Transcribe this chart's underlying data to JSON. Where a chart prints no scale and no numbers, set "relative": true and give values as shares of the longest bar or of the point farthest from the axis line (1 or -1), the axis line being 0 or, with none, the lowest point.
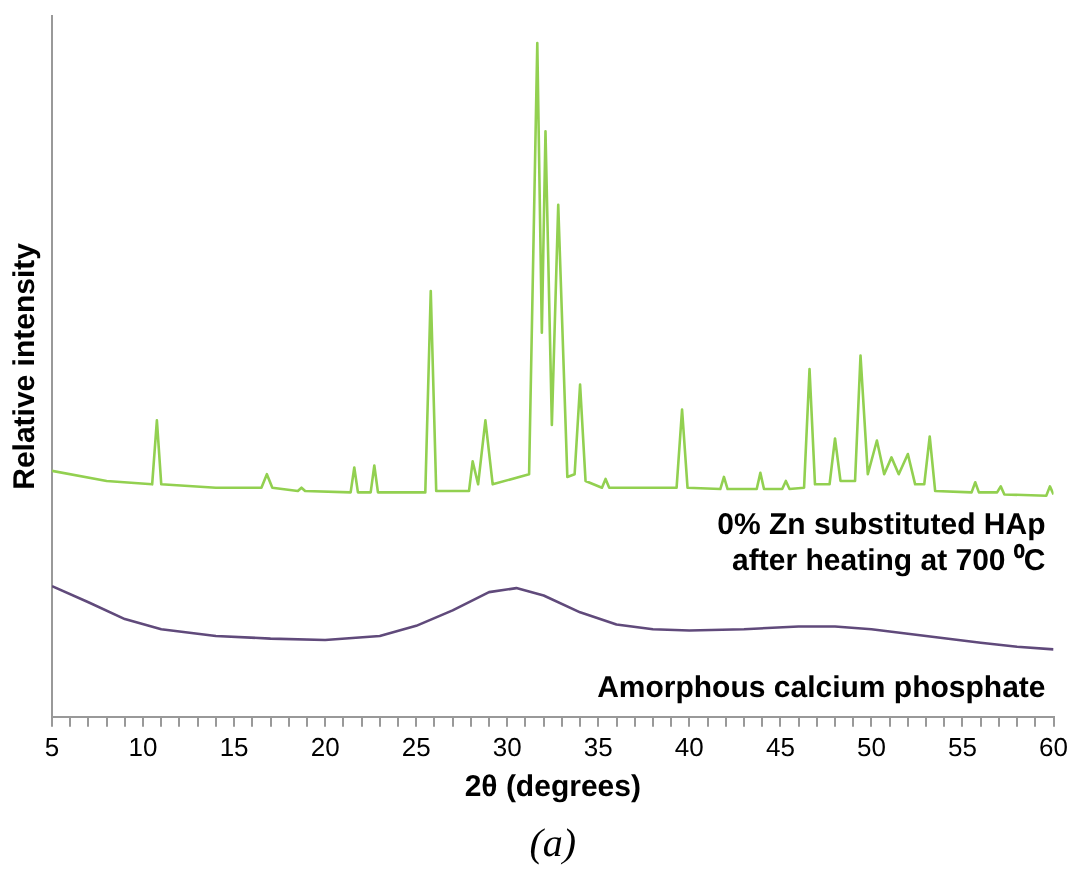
{
  "chart_data": {
    "type": "line",
    "relative": true,
    "xlabel": "2θ (degrees)",
    "ylabel": "Relative intensity",
    "marker": "none",
    "xlim": [
      5,
      60
    ],
    "xticks": [
      5,
      {
        "value": 6,
        "label": null
      },
      {
        "value": 7,
        "label": null
      },
      {
        "value": 8,
        "label": null
      },
      {
        "value": 9,
        "label": null
      },
      10,
      {
        "value": 11,
        "label": null
      },
      {
        "value": 12,
        "label": null
      },
      {
        "value": 13,
        "label": null
      },
      {
        "value": 14,
        "label": null
      },
      15,
      {
        "value": 16,
        "label": null
      },
      {
        "value": 17,
        "label": null
      },
      {
        "value": 18,
        "label": null
      },
      {
        "value": 19,
        "label": null
      },
      20,
      {
        "value": 21,
        "label": null
      },
      {
        "value": 22,
        "label": null
      },
      {
        "value": 23,
        "label": null
      },
      {
        "value": 24,
        "label": null
      },
      25,
      {
        "value": 26,
        "label": null
      },
      {
        "value": 27,
        "label": null
      },
      {
        "value": 28,
        "label": null
      },
      {
        "value": 29,
        "label": null
      },
      30,
      {
        "value": 31,
        "label": null
      },
      {
        "value": 32,
        "label": null
      },
      {
        "value": 33,
        "label": null
      },
      {
        "value": 34,
        "label": null
      },
      35,
      {
        "value": 36,
        "label": null
      },
      {
        "value": 37,
        "label": null
      },
      {
        "value": 38,
        "label": null
      },
      {
        "value": 39,
        "label": null
      },
      40,
      {
        "value": 41,
        "label": null
      },
      {
        "value": 42,
        "label": null
      },
      {
        "value": 43,
        "label": null
      },
      {
        "value": 44,
        "label": null
      },
      45,
      {
        "value": 46,
        "label": null
      },
      {
        "value": 47,
        "label": null
      },
      {
        "value": 48,
        "label": null
      },
      {
        "value": 49,
        "label": null
      },
      50,
      {
        "value": 51,
        "label": null
      },
      {
        "value": 52,
        "label": null
      },
      {
        "value": 53,
        "label": null
      },
      {
        "value": 54,
        "label": null
      },
      55,
      {
        "value": 56,
        "label": null
      },
      {
        "value": 57,
        "label": null
      },
      {
        "value": 58,
        "label": null
      },
      {
        "value": 59,
        "label": null
      },
      60
    ],
    "series": [
      {
        "name": "0% Zn substituted HAp after heating at 700 ⁰C",
        "color": "#92d050",
        "x": [
          5,
          8,
          10.5,
          10.76,
          11,
          14,
          16.5,
          16.8,
          17.1,
          18.5,
          18.7,
          18.9,
          21.4,
          21.6,
          21.8,
          22.5,
          22.7,
          22.9,
          25.5,
          25.8,
          26.1,
          27.9,
          28.1,
          28.4,
          28.8,
          29.2,
          31.2,
          31.65,
          31.9,
          32.1,
          32.45,
          32.8,
          33.3,
          33.7,
          34.0,
          34.3,
          35.2,
          35.4,
          35.6,
          39.3,
          39.6,
          39.9,
          41.7,
          41.9,
          42.1,
          43.7,
          43.9,
          44.1,
          45.1,
          45.3,
          45.5,
          46.3,
          46.6,
          46.9,
          47.7,
          48.0,
          48.3,
          49.1,
          49.4,
          49.8,
          50.3,
          50.7,
          51.1,
          51.5,
          52.0,
          52.4,
          52.9,
          53.2,
          53.5,
          55.5,
          55.7,
          55.9,
          56.9,
          57.1,
          57.3,
          59.6,
          59.8,
          60
        ],
        "values": [
          0.365,
          0.35,
          0.345,
          0.44,
          0.345,
          0.34,
          0.34,
          0.36,
          0.34,
          0.335,
          0.34,
          0.335,
          0.333,
          0.37,
          0.333,
          0.333,
          0.373,
          0.333,
          0.333,
          0.632,
          0.335,
          0.335,
          0.379,
          0.345,
          0.44,
          0.345,
          0.36,
          1.0,
          0.57,
          0.869,
          0.433,
          0.76,
          0.356,
          0.36,
          0.493,
          0.35,
          0.34,
          0.353,
          0.34,
          0.34,
          0.456,
          0.34,
          0.338,
          0.356,
          0.338,
          0.338,
          0.362,
          0.338,
          0.338,
          0.35,
          0.338,
          0.34,
          0.516,
          0.345,
          0.345,
          0.413,
          0.35,
          0.35,
          0.536,
          0.36,
          0.41,
          0.36,
          0.385,
          0.36,
          0.39,
          0.345,
          0.345,
          0.416,
          0.335,
          0.333,
          0.348,
          0.333,
          0.333,
          0.342,
          0.33,
          0.328,
          0.342,
          0.33
        ]
      },
      {
        "name": "Amorphous calcium phosphate",
        "color": "#604a7b",
        "x": [
          5,
          7,
          9,
          11,
          14,
          17,
          20,
          23,
          25,
          27,
          29,
          30.5,
          32,
          34,
          36,
          38,
          40,
          43,
          46,
          48,
          50,
          53,
          56,
          58,
          60
        ],
        "values": [
          0.194,
          0.17,
          0.145,
          0.13,
          0.12,
          0.116,
          0.114,
          0.12,
          0.135,
          0.158,
          0.185,
          0.191,
          0.18,
          0.155,
          0.137,
          0.13,
          0.128,
          0.13,
          0.134,
          0.134,
          0.13,
          0.12,
          0.11,
          0.104,
          0.1
        ]
      }
    ],
    "annotations": [
      "(a)"
    ]
  }
}
